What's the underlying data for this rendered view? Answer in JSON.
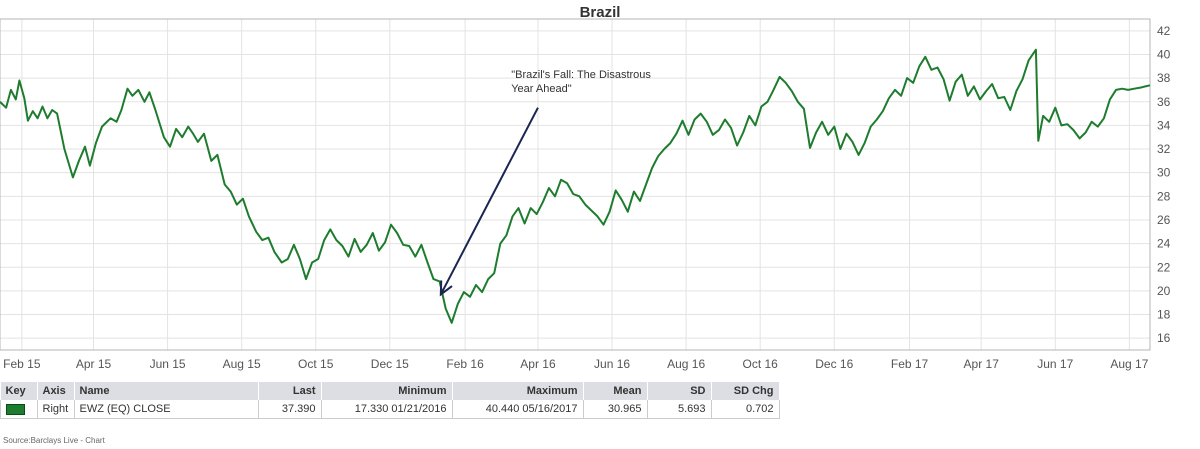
{
  "chart_data": {
    "type": "line",
    "title": "Brazil",
    "x_start": "2015-01-14",
    "x_end": "2017-08-18",
    "x_tick_labels": [
      {
        "label": "Feb 15",
        "date": "2015-02-01"
      },
      {
        "label": "Apr 15",
        "date": "2015-04-01"
      },
      {
        "label": "Jun 15",
        "date": "2015-06-01"
      },
      {
        "label": "Aug 15",
        "date": "2015-08-01"
      },
      {
        "label": "Oct 15",
        "date": "2015-10-01"
      },
      {
        "label": "Dec 15",
        "date": "2015-12-01"
      },
      {
        "label": "Feb 16",
        "date": "2016-02-01"
      },
      {
        "label": "Apr 16",
        "date": "2016-04-01"
      },
      {
        "label": "Jun 16",
        "date": "2016-06-01"
      },
      {
        "label": "Aug 16",
        "date": "2016-08-01"
      },
      {
        "label": "Oct 16",
        "date": "2016-10-01"
      },
      {
        "label": "Dec 16",
        "date": "2016-12-01"
      },
      {
        "label": "Feb 17",
        "date": "2017-02-01"
      },
      {
        "label": "Apr 17",
        "date": "2017-04-01"
      },
      {
        "label": "Jun 17",
        "date": "2017-06-01"
      },
      {
        "label": "Aug 17",
        "date": "2017-08-01"
      }
    ],
    "ylim": [
      15,
      43
    ],
    "y_ticks": [
      16,
      18,
      20,
      22,
      24,
      26,
      28,
      30,
      32,
      34,
      36,
      38,
      40,
      42
    ],
    "y_axis_side": "right",
    "grid": true,
    "series": [
      {
        "name": "EWZ (EQ) CLOSE",
        "color": "#1e7c2e",
        "points": [
          [
            "2015-01-14",
            36.0
          ],
          [
            "2015-01-19",
            35.5
          ],
          [
            "2015-01-23",
            37.0
          ],
          [
            "2015-01-27",
            36.2
          ],
          [
            "2015-01-30",
            37.8
          ],
          [
            "2015-02-03",
            36.3
          ],
          [
            "2015-02-06",
            34.4
          ],
          [
            "2015-02-10",
            35.2
          ],
          [
            "2015-02-14",
            34.6
          ],
          [
            "2015-02-18",
            35.6
          ],
          [
            "2015-02-22",
            34.6
          ],
          [
            "2015-02-26",
            35.3
          ],
          [
            "2015-03-02",
            35.0
          ],
          [
            "2015-03-08",
            32.0
          ],
          [
            "2015-03-15",
            29.6
          ],
          [
            "2015-03-20",
            31.0
          ],
          [
            "2015-03-25",
            32.2
          ],
          [
            "2015-03-29",
            30.6
          ],
          [
            "2015-04-03",
            32.5
          ],
          [
            "2015-04-08",
            33.9
          ],
          [
            "2015-04-15",
            34.6
          ],
          [
            "2015-04-20",
            34.3
          ],
          [
            "2015-04-24",
            35.3
          ],
          [
            "2015-04-29",
            37.1
          ],
          [
            "2015-05-03",
            36.5
          ],
          [
            "2015-05-08",
            37.0
          ],
          [
            "2015-05-13",
            36.0
          ],
          [
            "2015-05-17",
            36.8
          ],
          [
            "2015-05-22",
            35.3
          ],
          [
            "2015-05-29",
            33.0
          ],
          [
            "2015-06-03",
            32.2
          ],
          [
            "2015-06-08",
            33.7
          ],
          [
            "2015-06-13",
            33.0
          ],
          [
            "2015-06-18",
            33.9
          ],
          [
            "2015-06-22",
            33.3
          ],
          [
            "2015-06-26",
            32.6
          ],
          [
            "2015-07-01",
            33.3
          ],
          [
            "2015-07-07",
            31.0
          ],
          [
            "2015-07-12",
            31.5
          ],
          [
            "2015-07-18",
            29.0
          ],
          [
            "2015-07-23",
            28.4
          ],
          [
            "2015-07-28",
            27.3
          ],
          [
            "2015-08-02",
            27.8
          ],
          [
            "2015-08-07",
            26.3
          ],
          [
            "2015-08-13",
            25.0
          ],
          [
            "2015-08-18",
            24.3
          ],
          [
            "2015-08-23",
            24.5
          ],
          [
            "2015-08-28",
            23.3
          ],
          [
            "2015-09-03",
            22.4
          ],
          [
            "2015-09-08",
            22.7
          ],
          [
            "2015-09-13",
            23.9
          ],
          [
            "2015-09-18",
            22.7
          ],
          [
            "2015-09-23",
            21.0
          ],
          [
            "2015-09-28",
            22.4
          ],
          [
            "2015-10-03",
            22.7
          ],
          [
            "2015-10-08",
            24.3
          ],
          [
            "2015-10-13",
            25.2
          ],
          [
            "2015-10-18",
            24.3
          ],
          [
            "2015-10-23",
            23.8
          ],
          [
            "2015-10-28",
            22.9
          ],
          [
            "2015-11-02",
            24.4
          ],
          [
            "2015-11-07",
            23.3
          ],
          [
            "2015-11-12",
            23.9
          ],
          [
            "2015-11-17",
            24.9
          ],
          [
            "2015-11-22",
            23.4
          ],
          [
            "2015-11-27",
            24.1
          ],
          [
            "2015-12-02",
            25.6
          ],
          [
            "2015-12-07",
            24.9
          ],
          [
            "2015-12-12",
            23.9
          ],
          [
            "2015-12-17",
            23.8
          ],
          [
            "2015-12-22",
            22.9
          ],
          [
            "2015-12-27",
            23.9
          ],
          [
            "2016-01-01",
            22.4
          ],
          [
            "2016-01-06",
            21.0
          ],
          [
            "2016-01-11",
            20.8
          ],
          [
            "2016-01-16",
            18.5
          ],
          [
            "2016-01-21",
            17.3
          ],
          [
            "2016-01-26",
            18.9
          ],
          [
            "2016-01-31",
            19.9
          ],
          [
            "2016-02-05",
            19.5
          ],
          [
            "2016-02-10",
            20.5
          ],
          [
            "2016-02-15",
            19.9
          ],
          [
            "2016-02-20",
            21.0
          ],
          [
            "2016-02-25",
            21.5
          ],
          [
            "2016-03-01",
            24.0
          ],
          [
            "2016-03-06",
            24.7
          ],
          [
            "2016-03-11",
            26.3
          ],
          [
            "2016-03-16",
            27.0
          ],
          [
            "2016-03-21",
            25.7
          ],
          [
            "2016-03-26",
            27.0
          ],
          [
            "2016-03-31",
            26.5
          ],
          [
            "2016-04-05",
            27.5
          ],
          [
            "2016-04-10",
            28.7
          ],
          [
            "2016-04-15",
            28.0
          ],
          [
            "2016-04-20",
            29.4
          ],
          [
            "2016-04-25",
            29.1
          ],
          [
            "2016-04-30",
            28.2
          ],
          [
            "2016-05-05",
            28.0
          ],
          [
            "2016-05-10",
            27.3
          ],
          [
            "2016-05-15",
            26.8
          ],
          [
            "2016-05-20",
            26.3
          ],
          [
            "2016-05-25",
            25.6
          ],
          [
            "2016-05-30",
            26.7
          ],
          [
            "2016-06-04",
            28.5
          ],
          [
            "2016-06-09",
            27.7
          ],
          [
            "2016-06-14",
            26.7
          ],
          [
            "2016-06-19",
            28.4
          ],
          [
            "2016-06-24",
            27.6
          ],
          [
            "2016-06-29",
            29.0
          ],
          [
            "2016-07-04",
            30.4
          ],
          [
            "2016-07-09",
            31.4
          ],
          [
            "2016-07-14",
            32.0
          ],
          [
            "2016-07-19",
            32.5
          ],
          [
            "2016-07-24",
            33.3
          ],
          [
            "2016-07-29",
            34.4
          ],
          [
            "2016-08-03",
            33.2
          ],
          [
            "2016-08-08",
            34.5
          ],
          [
            "2016-08-13",
            35.0
          ],
          [
            "2016-08-18",
            34.3
          ],
          [
            "2016-08-23",
            33.2
          ],
          [
            "2016-08-28",
            33.6
          ],
          [
            "2016-09-02",
            34.5
          ],
          [
            "2016-09-07",
            33.8
          ],
          [
            "2016-09-12",
            32.3
          ],
          [
            "2016-09-17",
            33.4
          ],
          [
            "2016-09-22",
            34.8
          ],
          [
            "2016-09-27",
            34.0
          ],
          [
            "2016-10-02",
            35.6
          ],
          [
            "2016-10-07",
            36.0
          ],
          [
            "2016-10-12",
            37.0
          ],
          [
            "2016-10-17",
            38.1
          ],
          [
            "2016-10-22",
            37.6
          ],
          [
            "2016-10-27",
            36.9
          ],
          [
            "2016-11-01",
            36.0
          ],
          [
            "2016-11-06",
            35.4
          ],
          [
            "2016-11-11",
            32.1
          ],
          [
            "2016-11-16",
            33.4
          ],
          [
            "2016-11-21",
            34.3
          ],
          [
            "2016-11-26",
            33.2
          ],
          [
            "2016-12-01",
            33.9
          ],
          [
            "2016-12-06",
            32.0
          ],
          [
            "2016-12-11",
            33.3
          ],
          [
            "2016-12-16",
            32.6
          ],
          [
            "2016-12-21",
            31.5
          ],
          [
            "2016-12-26",
            32.5
          ],
          [
            "2016-12-31",
            33.9
          ],
          [
            "2017-01-05",
            34.5
          ],
          [
            "2017-01-10",
            35.2
          ],
          [
            "2017-01-15",
            36.3
          ],
          [
            "2017-01-20",
            37.0
          ],
          [
            "2017-01-25",
            36.5
          ],
          [
            "2017-01-30",
            38.0
          ],
          [
            "2017-02-04",
            37.6
          ],
          [
            "2017-02-09",
            39.0
          ],
          [
            "2017-02-14",
            39.8
          ],
          [
            "2017-02-19",
            38.7
          ],
          [
            "2017-02-24",
            38.9
          ],
          [
            "2017-03-01",
            37.9
          ],
          [
            "2017-03-06",
            36.1
          ],
          [
            "2017-03-11",
            37.7
          ],
          [
            "2017-03-16",
            38.3
          ],
          [
            "2017-03-21",
            36.5
          ],
          [
            "2017-03-26",
            37.3
          ],
          [
            "2017-03-31",
            36.2
          ],
          [
            "2017-04-05",
            36.9
          ],
          [
            "2017-04-10",
            37.5
          ],
          [
            "2017-04-15",
            36.3
          ],
          [
            "2017-04-20",
            36.4
          ],
          [
            "2017-04-25",
            35.3
          ],
          [
            "2017-04-30",
            36.9
          ],
          [
            "2017-05-05",
            37.9
          ],
          [
            "2017-05-10",
            39.5
          ],
          [
            "2017-05-16",
            40.4
          ],
          [
            "2017-05-18",
            32.7
          ],
          [
            "2017-05-22",
            34.8
          ],
          [
            "2017-05-27",
            34.3
          ],
          [
            "2017-06-01",
            35.5
          ],
          [
            "2017-06-06",
            34.0
          ],
          [
            "2017-06-11",
            34.1
          ],
          [
            "2017-06-16",
            33.6
          ],
          [
            "2017-06-21",
            32.9
          ],
          [
            "2017-06-26",
            33.4
          ],
          [
            "2017-07-01",
            34.3
          ],
          [
            "2017-07-06",
            33.9
          ],
          [
            "2017-07-11",
            34.6
          ],
          [
            "2017-07-16",
            36.2
          ],
          [
            "2017-07-21",
            37.0
          ],
          [
            "2017-07-26",
            37.1
          ],
          [
            "2017-07-31",
            37.0
          ],
          [
            "2017-08-05",
            37.1
          ],
          [
            "2017-08-10",
            37.2
          ],
          [
            "2017-08-18",
            37.39
          ]
        ]
      }
    ],
    "annotation": {
      "lines": [
        "\"Brazil's Fall: The Disastrous",
        "Year Ahead\""
      ],
      "text_anchor": {
        "date": "2016-03-10",
        "value": 38.0
      },
      "arrow_from": {
        "date": "2016-04-01",
        "value": 35.5
      },
      "arrow_to": {
        "date": "2016-01-12",
        "value": 19.7
      },
      "color": "#1a2651"
    }
  },
  "table": {
    "headers": [
      "Key",
      "Axis",
      "Name",
      "Last",
      "Minimum",
      "Maximum",
      "Mean",
      "SD",
      "SD Chg"
    ],
    "rows": [
      {
        "axis": "Right",
        "name": "EWZ (EQ) CLOSE",
        "last": "37.390",
        "minimum": "17.330 01/21/2016",
        "maximum": "40.440 05/16/2017",
        "mean": "30.965",
        "sd": "5.693",
        "sd_chg": "0.702"
      }
    ]
  },
  "source": "Source:Barclays Live - Chart"
}
